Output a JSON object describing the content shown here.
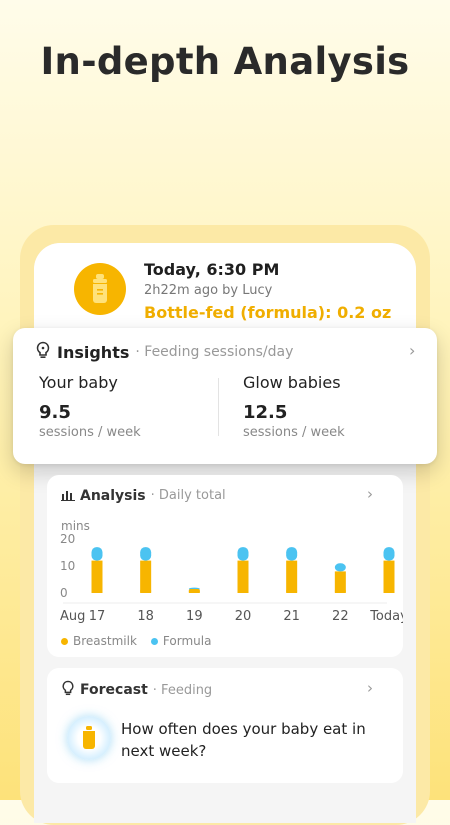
{
  "headline": "In-depth Analysis",
  "log": {
    "time": "Today, 6:30 PM",
    "ago": "2h22m ago by Lucy",
    "detail": "Bottle-fed (formula): 0.2 oz",
    "icon": "bottle-icon"
  },
  "insights": {
    "title": "Insights",
    "subtitle": "· Feeding sessions/day",
    "your_baby": {
      "label": "Your baby",
      "value": "9.5",
      "unit": "sessions / week"
    },
    "glow_babies": {
      "label": "Glow babies",
      "value": "12.5",
      "unit": "sessions / week"
    }
  },
  "analysis": {
    "title": "Analysis",
    "subtitle": "· Daily total",
    "y_unit": "mins",
    "month": "Aug",
    "legend": {
      "breastmilk": "Breastmilk",
      "formula": "Formula"
    }
  },
  "forecast": {
    "title": "Forecast",
    "subtitle": "· Feeding",
    "question": "How often does your baby eat in next week?"
  },
  "colors": {
    "breastmilk": "#F7B500",
    "formula": "#4BC3F1",
    "accent": "#F0AE00"
  },
  "chart_data": {
    "type": "bar",
    "stacked": true,
    "ylabel": "mins",
    "ylim": [
      0,
      20
    ],
    "y_ticks": [
      0,
      10,
      20
    ],
    "categories": [
      "17",
      "18",
      "19",
      "20",
      "21",
      "22",
      "Today"
    ],
    "series": [
      {
        "name": "Breastmilk",
        "values": [
          12,
          12,
          1,
          12,
          12,
          8,
          12
        ]
      },
      {
        "name": "Formula",
        "values": [
          5,
          5,
          1,
          5,
          5,
          3,
          5
        ]
      }
    ],
    "legend": "bottom-left"
  }
}
